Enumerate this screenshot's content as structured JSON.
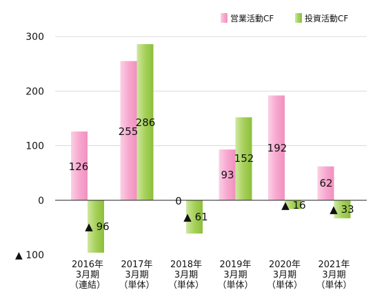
{
  "chart_data": {
    "type": "bar",
    "categories": [
      [
        "2016年",
        "3月期",
        "（連結）"
      ],
      [
        "2017年",
        "3月期",
        "（単体）"
      ],
      [
        "2018年",
        "3月期",
        "（単体）"
      ],
      [
        "2019年",
        "3月期",
        "（単体）"
      ],
      [
        "2020年",
        "3月期",
        "（単体）"
      ],
      [
        "2021年",
        "3月期",
        "（単体）"
      ]
    ],
    "series": [
      {
        "name": "営業活動CF",
        "color": "#f7a8cf",
        "values": [
          126,
          255,
          0,
          93,
          192,
          62
        ],
        "labels": [
          "126",
          "255",
          "0",
          "93",
          "192",
          "62"
        ]
      },
      {
        "name": "投資活動CF",
        "color": "#a6d05a",
        "values": [
          -96,
          286,
          -61,
          152,
          -16,
          -33
        ],
        "labels": [
          "▲ 96",
          "286",
          "▲ 61",
          "152",
          "▲ 16",
          "▲ 33"
        ]
      }
    ],
    "ylim": [
      -100,
      300
    ],
    "yticks": [
      300,
      200,
      100,
      0,
      -100
    ],
    "ytick_labels": [
      "300",
      "200",
      "100",
      "0",
      "▲ 100"
    ],
    "grid": true,
    "legend_position": "top-right"
  }
}
